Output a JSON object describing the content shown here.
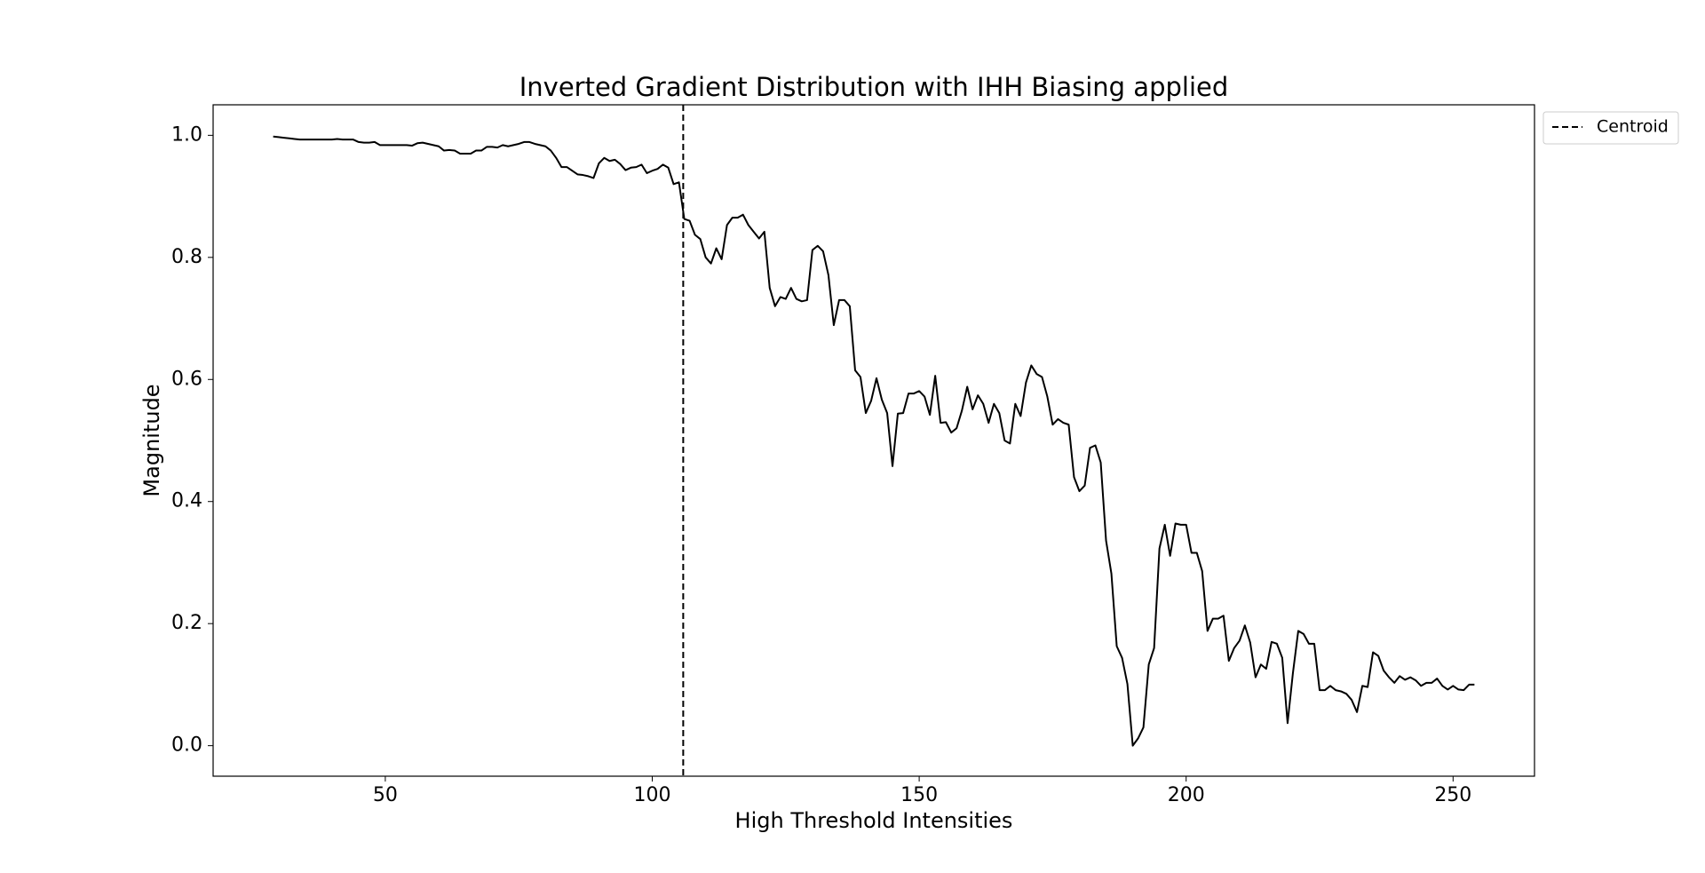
{
  "chart_data": {
    "type": "line",
    "title": "Inverted Gradient Distribution with IHH Biasing applied",
    "xlabel": "High Threshold Intensities",
    "ylabel": "Magnitude",
    "color": "#000000",
    "x": [
      29,
      30,
      31,
      32,
      33,
      34,
      35,
      36,
      37,
      38,
      39,
      40,
      41,
      42,
      43,
      44,
      45,
      46,
      47,
      48,
      49,
      50,
      51,
      52,
      53,
      54,
      55,
      56,
      57,
      58,
      59,
      60,
      61,
      62,
      63,
      64,
      65,
      66,
      67,
      68,
      69,
      70,
      71,
      72,
      73,
      74,
      75,
      76,
      77,
      78,
      79,
      80,
      81,
      82,
      83,
      84,
      85,
      86,
      87,
      88,
      89,
      90,
      91,
      92,
      93,
      94,
      95,
      96,
      97,
      98,
      99,
      100,
      101,
      102,
      103,
      104,
      105,
      106,
      107,
      108,
      109,
      110,
      111,
      112,
      113,
      114,
      115,
      116,
      117,
      118,
      119,
      120,
      121,
      122,
      123,
      124,
      125,
      126,
      127,
      128,
      129,
      130,
      131,
      132,
      133,
      134,
      135,
      136,
      137,
      138,
      139,
      140,
      141,
      142,
      143,
      144,
      145,
      146,
      147,
      148,
      149,
      150,
      151,
      152,
      153,
      154,
      155,
      156,
      157,
      158,
      159,
      160,
      161,
      162,
      163,
      164,
      165,
      166,
      167,
      168,
      169,
      170,
      171,
      172,
      173,
      174,
      175,
      176,
      177,
      178,
      179,
      180,
      181,
      182,
      183,
      184,
      185,
      186,
      187,
      188,
      189,
      190,
      191,
      192,
      193,
      194,
      195,
      196,
      197,
      198,
      199,
      200,
      201,
      202,
      203,
      204,
      205,
      206,
      207,
      208,
      209,
      210,
      211,
      212,
      213,
      214,
      215,
      216,
      217,
      218,
      219,
      220,
      221,
      222,
      223,
      224,
      225,
      226,
      227,
      228,
      229,
      230,
      231,
      232,
      233,
      234,
      235,
      236,
      237,
      238,
      239,
      240,
      241,
      242,
      243,
      244,
      245,
      246,
      247,
      248,
      249,
      250,
      251,
      252,
      253,
      254
    ],
    "values": [
      0.998,
      0.997,
      0.996,
      0.995,
      0.994,
      0.993,
      0.993,
      0.993,
      0.993,
      0.993,
      0.993,
      0.993,
      0.994,
      0.993,
      0.993,
      0.993,
      0.989,
      0.988,
      0.988,
      0.989,
      0.984,
      0.984,
      0.984,
      0.984,
      0.984,
      0.984,
      0.983,
      0.987,
      0.988,
      0.986,
      0.984,
      0.982,
      0.975,
      0.976,
      0.975,
      0.97,
      0.97,
      0.97,
      0.975,
      0.975,
      0.981,
      0.981,
      0.98,
      0.984,
      0.982,
      0.984,
      0.986,
      0.989,
      0.989,
      0.986,
      0.984,
      0.982,
      0.975,
      0.963,
      0.948,
      0.948,
      0.942,
      0.936,
      0.935,
      0.933,
      0.93,
      0.954,
      0.963,
      0.958,
      0.96,
      0.953,
      0.943,
      0.947,
      0.948,
      0.952,
      0.938,
      0.942,
      0.945,
      0.952,
      0.947,
      0.92,
      0.923,
      0.863,
      0.86,
      0.837,
      0.83,
      0.8,
      0.79,
      0.815,
      0.797,
      0.853,
      0.865,
      0.865,
      0.87,
      0.853,
      0.842,
      0.831,
      0.842,
      0.75,
      0.72,
      0.735,
      0.732,
      0.75,
      0.732,
      0.728,
      0.73,
      0.812,
      0.819,
      0.81,
      0.771,
      0.689,
      0.73,
      0.73,
      0.72,
      0.615,
      0.604,
      0.545,
      0.565,
      0.602,
      0.567,
      0.545,
      0.458,
      0.544,
      0.545,
      0.577,
      0.577,
      0.581,
      0.572,
      0.542,
      0.606,
      0.529,
      0.53,
      0.513,
      0.52,
      0.549,
      0.588,
      0.551,
      0.574,
      0.56,
      0.529,
      0.56,
      0.545,
      0.5,
      0.495,
      0.56,
      0.54,
      0.595,
      0.623,
      0.609,
      0.604,
      0.572,
      0.526,
      0.535,
      0.529,
      0.526,
      0.44,
      0.417,
      0.426,
      0.488,
      0.492,
      0.464,
      0.336,
      0.282,
      0.163,
      0.144,
      0.101,
      0.0,
      0.012,
      0.03,
      0.133,
      0.16,
      0.323,
      0.362,
      0.311,
      0.364,
      0.362,
      0.362,
      0.316,
      0.316,
      0.286,
      0.188,
      0.208,
      0.208,
      0.213,
      0.139,
      0.16,
      0.172,
      0.197,
      0.169,
      0.112,
      0.133,
      0.126,
      0.17,
      0.167,
      0.144,
      0.037,
      0.119,
      0.188,
      0.183,
      0.167,
      0.167,
      0.091,
      0.091,
      0.098,
      0.091,
      0.089,
      0.085,
      0.075,
      0.055,
      0.098,
      0.096,
      0.153,
      0.147,
      0.123,
      0.112,
      0.103,
      0.114,
      0.108,
      0.112,
      0.107,
      0.098,
      0.103,
      0.103,
      0.11,
      0.098,
      0.092,
      0.098,
      0.092,
      0.091,
      0.1,
      0.1
    ],
    "vlines": [
      {
        "name": "Centroid",
        "x": 105.8,
        "color": "#000000",
        "style": "dashed"
      }
    ],
    "xlim": [
      17.75,
      265.25
    ],
    "ylim": [
      -0.05,
      1.05
    ],
    "xticks": [
      50,
      100,
      150,
      200,
      250
    ],
    "yticks": [
      {
        "value": 0,
        "label": "0.0"
      },
      0.2,
      0.4,
      0.6,
      0.8,
      {
        "value": 1,
        "label": "1.0"
      }
    ],
    "grid": false,
    "legend": "outside upper right"
  }
}
